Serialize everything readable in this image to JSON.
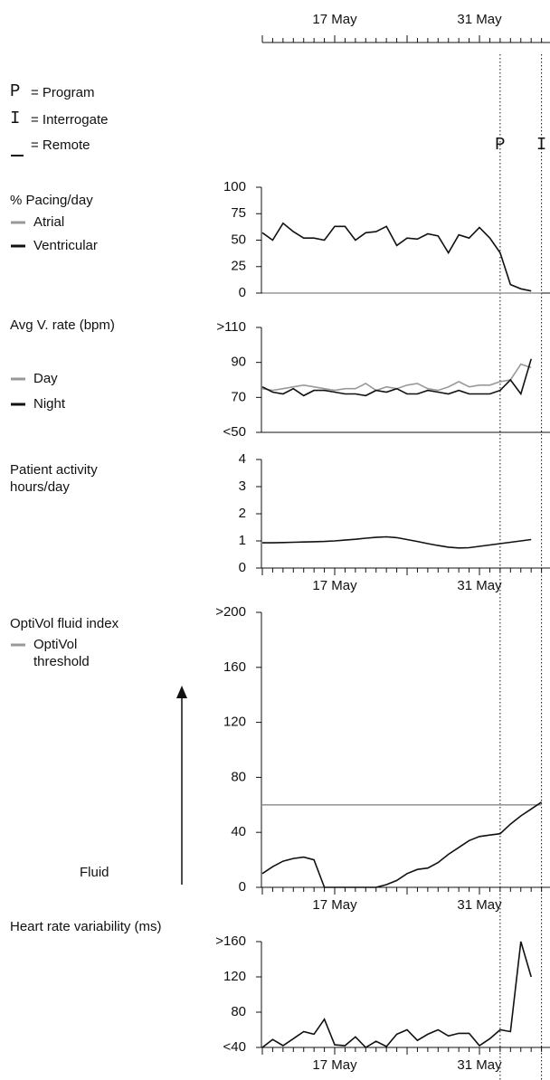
{
  "legend_key": [
    {
      "symbol": "P",
      "text": "= Program"
    },
    {
      "symbol": "I",
      "text": "= Interrogate"
    },
    {
      "symbol": "_",
      "text": "= Remote"
    }
  ],
  "events": [
    {
      "symbol": "P",
      "category": 23
    },
    {
      "symbol": "I",
      "category": 27
    }
  ],
  "chart_data": [
    {
      "type": "line",
      "title": "% Pacing/day",
      "categories": [
        null,
        null,
        null,
        null,
        null,
        null,
        null,
        "17 May",
        null,
        null,
        null,
        null,
        null,
        null,
        null,
        null,
        null,
        null,
        null,
        null,
        null,
        "31 May",
        null,
        null,
        null,
        null,
        null,
        null
      ],
      "ylim": [
        0,
        100
      ],
      "yticks": [
        0,
        25,
        50,
        75,
        100
      ],
      "x_axis_labels": false,
      "series": [
        {
          "name": "Atrial",
          "color": "#999999",
          "values": [
            0,
            0,
            0,
            0,
            0,
            0,
            0,
            0,
            0,
            0,
            0,
            0,
            0,
            0,
            0,
            0,
            0,
            0,
            0,
            0,
            0,
            0,
            0,
            0,
            0,
            0,
            0,
            0
          ]
        },
        {
          "name": "Ventricular",
          "color": "#111111",
          "values": [
            57,
            50,
            66,
            58,
            52,
            52,
            50,
            63,
            63,
            50,
            57,
            58,
            63,
            45,
            52,
            51,
            56,
            54,
            38,
            55,
            52,
            62,
            52,
            38,
            8,
            4,
            2,
            null
          ]
        }
      ]
    },
    {
      "type": "line",
      "title": "Avg V. rate (bpm)",
      "categories": [
        null,
        null,
        null,
        null,
        null,
        null,
        null,
        "17 May",
        null,
        null,
        null,
        null,
        null,
        null,
        null,
        null,
        null,
        null,
        null,
        null,
        null,
        "31 May",
        null,
        null,
        null,
        null,
        null,
        null
      ],
      "ylim": [
        50,
        110
      ],
      "yticks": [
        {
          "value": 50,
          "label": "<50"
        },
        70,
        90,
        {
          "value": 110,
          "label": ">110"
        }
      ],
      "x_axis_labels": false,
      "series": [
        {
          "name": "Day",
          "color": "#999999",
          "values": [
            75,
            74,
            75,
            76,
            77,
            76,
            75,
            74,
            75,
            75,
            78,
            74,
            76,
            75,
            77,
            78,
            75,
            74,
            76,
            79,
            76,
            77,
            77,
            79,
            80,
            89,
            87,
            null
          ]
        },
        {
          "name": "Night",
          "color": "#111111",
          "values": [
            76,
            73,
            72,
            75,
            71,
            74,
            74,
            73,
            72,
            72,
            71,
            74,
            73,
            75,
            72,
            72,
            74,
            73,
            72,
            74,
            72,
            72,
            72,
            74,
            80,
            72,
            92,
            null
          ]
        }
      ]
    },
    {
      "type": "line",
      "title": "Patient activity hours/day",
      "categories": [
        null,
        null,
        null,
        null,
        null,
        null,
        null,
        "17 May",
        null,
        null,
        null,
        null,
        null,
        null,
        null,
        null,
        null,
        null,
        null,
        null,
        null,
        "31 May",
        null,
        null,
        null,
        null,
        null,
        null
      ],
      "ylim": [
        0,
        4
      ],
      "yticks": [
        0,
        1,
        2,
        3,
        4
      ],
      "x_axis_labels": true,
      "series": [
        {
          "color": "#111111",
          "values": [
            0.93,
            0.93,
            0.94,
            0.95,
            0.96,
            0.97,
            0.98,
            1.0,
            1.03,
            1.06,
            1.1,
            1.13,
            1.15,
            1.12,
            1.05,
            0.98,
            0.9,
            0.83,
            0.77,
            0.74,
            0.75,
            0.8,
            0.85,
            0.9,
            0.95,
            1.0,
            1.05,
            null
          ]
        }
      ]
    },
    {
      "type": "line",
      "title": "OptiVol fluid index",
      "annotation": "Fluid",
      "categories": [
        null,
        null,
        null,
        null,
        null,
        null,
        null,
        "17 May",
        null,
        null,
        null,
        null,
        null,
        null,
        null,
        null,
        null,
        null,
        null,
        null,
        null,
        "31 May",
        null,
        null,
        null,
        null,
        null,
        null
      ],
      "ylim": [
        0,
        200
      ],
      "yticks": [
        0,
        40,
        80,
        120,
        160,
        {
          "value": 200,
          "label": ">200"
        }
      ],
      "x_axis_labels": true,
      "series": [
        {
          "name": "OptiVol threshold",
          "color": "#999999",
          "values": [
            60,
            60,
            60,
            60,
            60,
            60,
            60,
            60,
            60,
            60,
            60,
            60,
            60,
            60,
            60,
            60,
            60,
            60,
            60,
            60,
            60,
            60,
            60,
            60,
            60,
            60,
            60,
            60
          ]
        },
        {
          "color": "#111111",
          "values": [
            10,
            15,
            19,
            21,
            22,
            20,
            0,
            0,
            0,
            0,
            0,
            0,
            2,
            5,
            10,
            13,
            14,
            18,
            24,
            29,
            34,
            37,
            38,
            39,
            46,
            52,
            57,
            62
          ]
        }
      ]
    },
    {
      "type": "line",
      "title": "Heart rate variability (ms)",
      "categories": [
        null,
        null,
        null,
        null,
        null,
        null,
        null,
        "17 May",
        null,
        null,
        null,
        null,
        null,
        null,
        null,
        null,
        null,
        null,
        null,
        null,
        null,
        "31 May",
        null,
        null,
        null,
        null,
        null,
        null
      ],
      "ylim": [
        40,
        160
      ],
      "yticks": [
        {
          "value": 40,
          "label": "<40"
        },
        80,
        120,
        {
          "value": 160,
          "label": ">160"
        }
      ],
      "x_axis_labels": true,
      "series": [
        {
          "color": "#111111",
          "values": [
            40,
            49,
            42,
            50,
            58,
            55,
            72,
            43,
            42,
            52,
            40,
            47,
            41,
            55,
            60,
            48,
            55,
            60,
            53,
            56,
            56,
            42,
            50,
            60,
            58,
            160,
            120,
            null
          ]
        }
      ]
    }
  ]
}
